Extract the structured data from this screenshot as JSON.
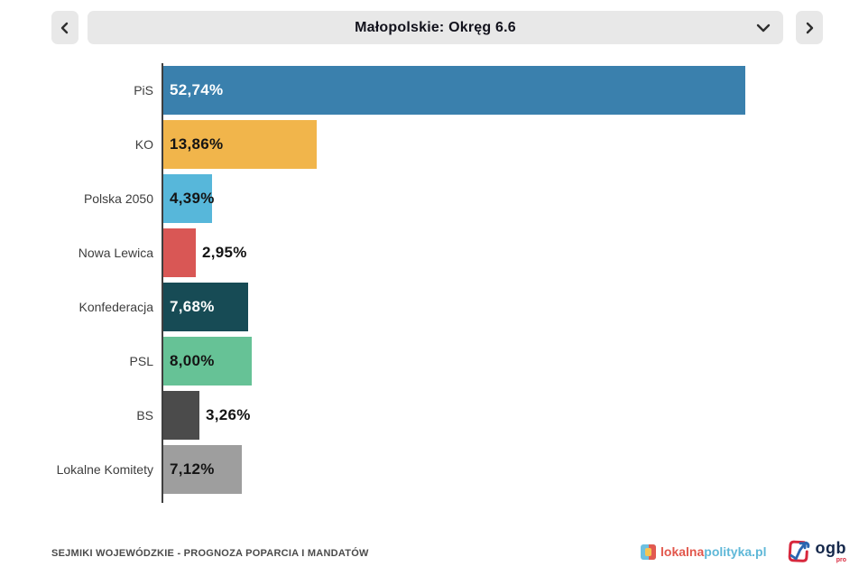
{
  "header": {
    "title": "Małopolskie: Okręg 6.6",
    "prev_icon": "chevron-left",
    "next_icon": "chevron-right",
    "dropdown_icon": "chevron-down"
  },
  "chart_data": {
    "type": "bar",
    "orientation": "horizontal",
    "title": "Małopolskie: Okręg 6.6",
    "categories": [
      "PiS",
      "KO",
      "Polska 2050",
      "Nowa Lewica",
      "Konfederacja",
      "PSL",
      "BS",
      "Lokalne Komitety"
    ],
    "values": [
      52.74,
      13.86,
      4.39,
      2.95,
      7.68,
      8.0,
      3.26,
      7.12
    ],
    "value_labels": [
      "52,74%",
      "13,86%",
      "4,39%",
      "2,95%",
      "7,68%",
      "8,00%",
      "3,26%",
      "7,12%"
    ],
    "bar_colors": [
      "#3a80ad",
      "#f1b54b",
      "#57b7da",
      "#d95755",
      "#174b55",
      "#66c296",
      "#4b4b4b",
      "#9e9e9e"
    ],
    "value_label_colors": [
      "#ffffff",
      "#141414",
      "#141414",
      "#141414",
      "#ffffff",
      "#141414",
      "#141414",
      "#141414"
    ],
    "xlim": [
      0,
      52.74
    ],
    "grid": false,
    "legend": false,
    "axis_color": "#3f3f3f"
  },
  "footer": {
    "caption": "SEJMIKI WOJEWÓDZKIE - PROGNOZA POPARCIA I MANDATÓW",
    "logo_lokalnapolityka": {
      "part_red": "lokalna",
      "part_blue": "polityka.pl"
    },
    "logo_ogb": {
      "text": "ogb",
      "sub": "pro"
    }
  },
  "colors": {
    "header_bg": "#e8e8e8",
    "title_text": "#12121c",
    "category_text": "#3d3d3d",
    "caption_text": "#4a4a4a",
    "background": "#ffffff"
  }
}
